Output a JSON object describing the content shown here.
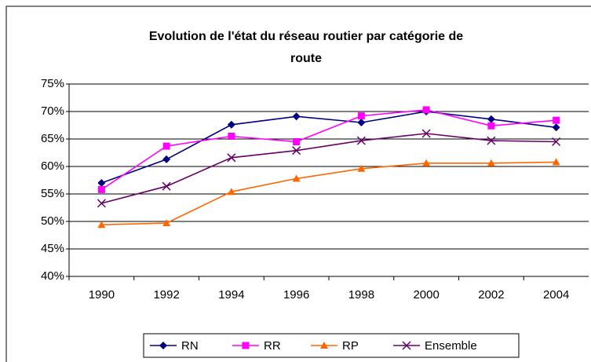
{
  "chart_data": {
    "type": "line",
    "title": "Evolution de l'état du réseau routier par catégorie de route",
    "categories": [
      "1990",
      "1992",
      "1994",
      "1996",
      "1998",
      "2000",
      "2002",
      "2004"
    ],
    "series": [
      {
        "name": "RN",
        "color": "#000080",
        "marker": "diamond",
        "values": [
          57.0,
          61.3,
          67.6,
          69.1,
          68.0,
          70.0,
          68.6,
          67.1
        ]
      },
      {
        "name": "RR",
        "color": "#ff00ff",
        "marker": "square",
        "values": [
          55.8,
          63.7,
          65.5,
          64.5,
          69.2,
          70.3,
          67.4,
          68.4
        ]
      },
      {
        "name": "RP",
        "color": "#ff6600",
        "marker": "triangle",
        "values": [
          49.4,
          49.7,
          55.4,
          57.8,
          59.6,
          60.6,
          60.6,
          60.8
        ]
      },
      {
        "name": "Ensemble",
        "color": "#660066",
        "marker": "x",
        "values": [
          53.3,
          56.4,
          61.6,
          62.9,
          64.7,
          66.0,
          64.7,
          64.5
        ]
      }
    ],
    "ylim": [
      40,
      75
    ],
    "yticks": [
      {
        "value": 40,
        "label": "40%"
      },
      {
        "value": 45,
        "label": "45%"
      },
      {
        "value": 50,
        "label": "50%"
      },
      {
        "value": 55,
        "label": "55%"
      },
      {
        "value": 60,
        "label": "60%"
      },
      {
        "value": 65,
        "label": "65%"
      },
      {
        "value": 70,
        "label": "70%"
      },
      {
        "value": 75,
        "label": "75%"
      }
    ],
    "grid": true,
    "legend": "bottom"
  }
}
